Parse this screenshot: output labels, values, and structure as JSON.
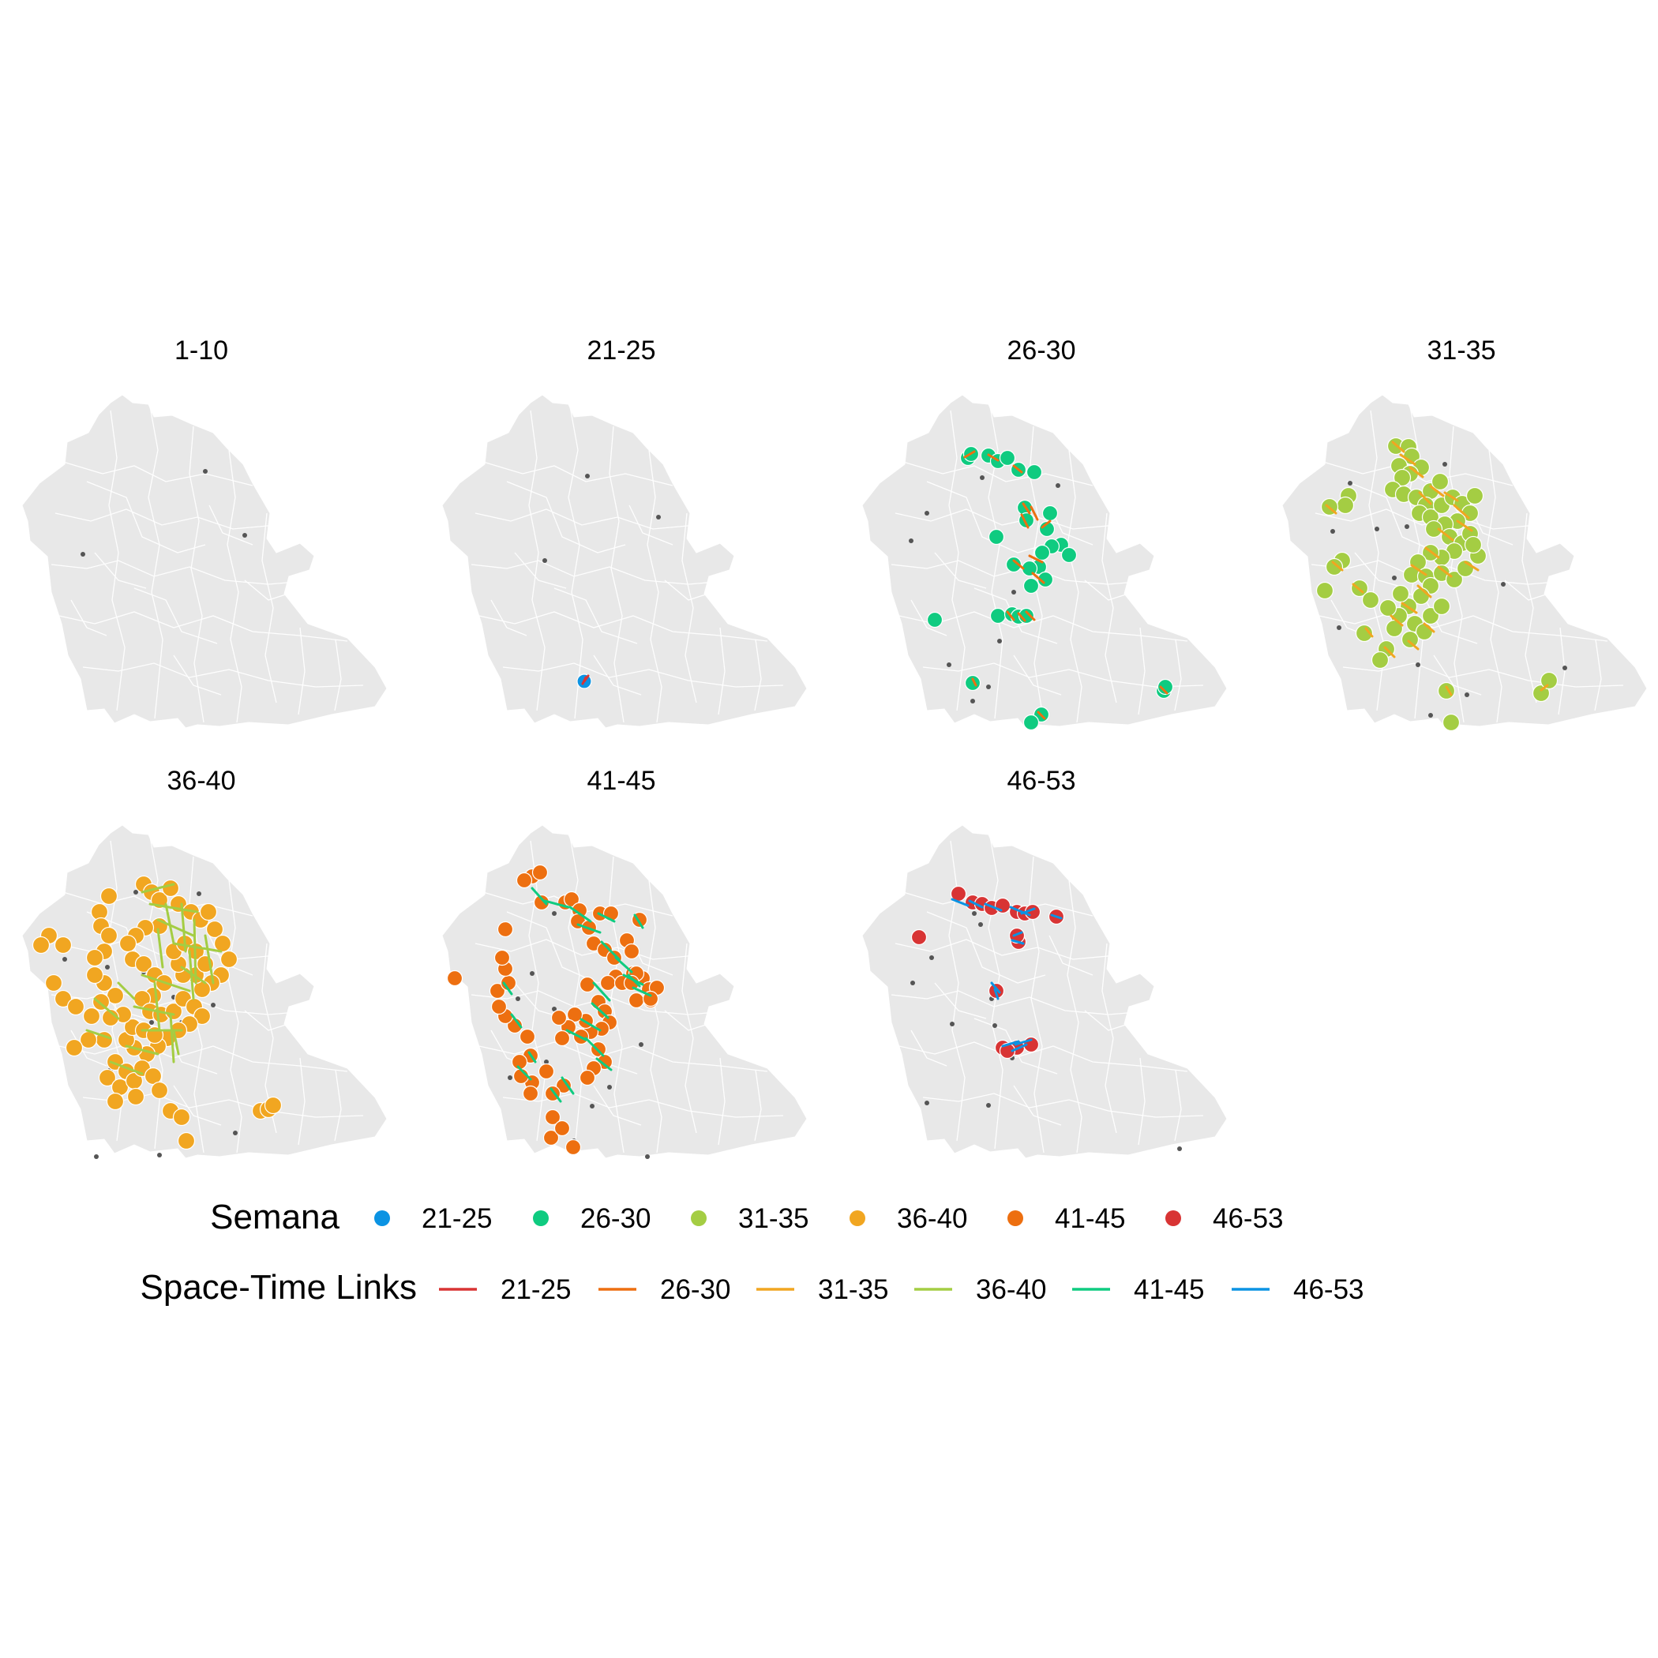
{
  "figure": {
    "panels": [
      {
        "title": "1-10",
        "category": null
      },
      {
        "title": "21-25",
        "category": "21-25"
      },
      {
        "title": "26-30",
        "category": "26-30"
      },
      {
        "title": "31-35",
        "category": "31-35"
      },
      {
        "title": "36-40",
        "category": "36-40"
      },
      {
        "title": "41-45",
        "category": "41-45"
      },
      {
        "title": "46-53",
        "category": "46-53"
      }
    ]
  },
  "legend": {
    "semana": {
      "title": "Semana",
      "items": [
        {
          "label": "21-25",
          "color": "#0b93e3"
        },
        {
          "label": "26-30",
          "color": "#0fcb80"
        },
        {
          "label": "31-35",
          "color": "#a4cd43"
        },
        {
          "label": "36-40",
          "color": "#f1a621"
        },
        {
          "label": "41-45",
          "color": "#ed6f10"
        },
        {
          "label": "46-53",
          "color": "#d83434"
        }
      ]
    },
    "links": {
      "title": "Space-Time Links",
      "items": [
        {
          "label": "21-25",
          "color": "#d83434"
        },
        {
          "label": "26-30",
          "color": "#ed6f10"
        },
        {
          "label": "31-35",
          "color": "#f1a621"
        },
        {
          "label": "36-40",
          "color": "#a4cd43"
        },
        {
          "label": "41-45",
          "color": "#0fcb80"
        },
        {
          "label": "46-53",
          "color": "#0b93e3"
        }
      ]
    }
  },
  "colors": {
    "region_fill": "#e8e8e8",
    "boundary": "#ffffff",
    "reference_point": "#555555"
  }
}
